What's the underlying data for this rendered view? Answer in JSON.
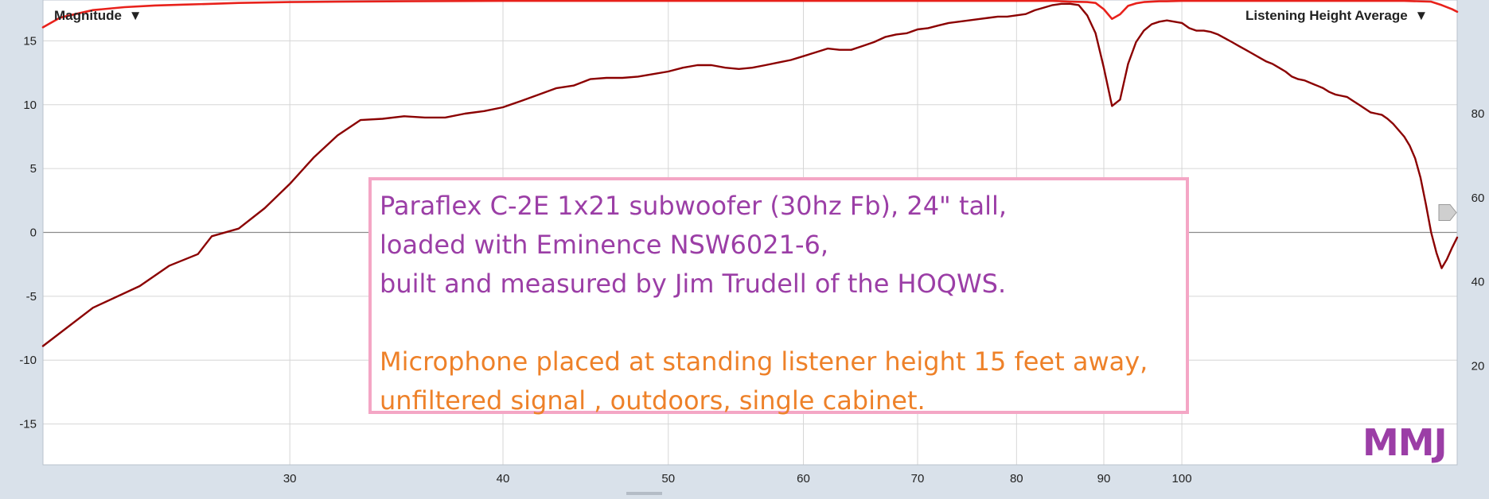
{
  "chart_data": {
    "type": "line",
    "xscale": "log",
    "xlim": [
      21.5,
      145
    ],
    "ylim": [
      -18.2,
      18.2
    ],
    "y2lim": [
      -3.5,
      107
    ],
    "x_ticks": [
      30,
      40,
      50,
      60,
      70,
      80,
      90,
      100
    ],
    "y_ticks": [
      15,
      10,
      5,
      0,
      -5,
      -10,
      -15
    ],
    "y2_ticks": [
      80,
      60,
      40,
      20
    ],
    "grid": true,
    "controls": {
      "left_label": "Magnitude",
      "right_label": "Listening Height Average",
      "dropdown_glyph": "▼"
    },
    "series": [
      {
        "axis": "left",
        "color": "#8b0000",
        "x": [
          21.5,
          23,
          24.5,
          25.5,
          26.5,
          27,
          28,
          29,
          30,
          31,
          32,
          33,
          34,
          35,
          36,
          37,
          38,
          39,
          40,
          41,
          42,
          43,
          44,
          45,
          46,
          47,
          48,
          49,
          50,
          51,
          52,
          53,
          54,
          55,
          56,
          57,
          58,
          59,
          60,
          61,
          62,
          63,
          64,
          65,
          66,
          67,
          68,
          69,
          70,
          71,
          72,
          73,
          74,
          75,
          76,
          77,
          78,
          79,
          80,
          81,
          82,
          83,
          84,
          85,
          86,
          87,
          88,
          89,
          90,
          91,
          92,
          93,
          94,
          95,
          96,
          97,
          98,
          99,
          100,
          101,
          102,
          103,
          104,
          105,
          106,
          107,
          108,
          109,
          110,
          111,
          112,
          113,
          114,
          115,
          116,
          117,
          118,
          119,
          120,
          121,
          122,
          123,
          124,
          125,
          126,
          127,
          128,
          129,
          130,
          131,
          132,
          133,
          134,
          135,
          136,
          137,
          138,
          139,
          140,
          141,
          142,
          143,
          144,
          145
        ],
        "y": [
          -8.9,
          -5.9,
          -4.2,
          -2.6,
          -1.7,
          -0.3,
          0.3,
          1.9,
          3.8,
          5.9,
          7.6,
          8.8,
          8.9,
          9.1,
          9.0,
          9.0,
          9.3,
          9.5,
          9.8,
          10.3,
          10.8,
          11.3,
          11.5,
          12.0,
          12.1,
          12.1,
          12.2,
          12.4,
          12.6,
          12.9,
          13.1,
          13.1,
          12.9,
          12.8,
          12.9,
          13.1,
          13.3,
          13.5,
          13.8,
          14.1,
          14.4,
          14.3,
          14.3,
          14.6,
          14.9,
          15.3,
          15.5,
          15.6,
          15.9,
          16.0,
          16.2,
          16.4,
          16.5,
          16.6,
          16.7,
          16.8,
          16.9,
          16.9,
          17.0,
          17.1,
          17.4,
          17.6,
          17.8,
          17.9,
          17.9,
          17.8,
          17.0,
          15.6,
          12.9,
          9.9,
          10.4,
          13.2,
          14.9,
          15.8,
          16.3,
          16.5,
          16.6,
          16.5,
          16.4,
          16.0,
          15.8,
          15.8,
          15.7,
          15.5,
          15.2,
          14.9,
          14.6,
          14.3,
          14.0,
          13.7,
          13.4,
          13.2,
          12.9,
          12.6,
          12.2,
          12.0,
          11.9,
          11.7,
          11.5,
          11.3,
          11.0,
          10.8,
          10.7,
          10.6,
          10.3,
          10.0,
          9.7,
          9.4,
          9.3,
          9.2,
          8.9,
          8.5,
          8.0,
          7.5,
          6.8,
          5.8,
          4.3,
          2.2,
          0.0,
          -1.6,
          -2.8,
          -2.1,
          -1.2,
          -0.4
        ]
      },
      {
        "axis": "right",
        "color": "#e8211b",
        "x": [
          21.5,
          22,
          23,
          24,
          25,
          26,
          27,
          28,
          30,
          32,
          35,
          40,
          45,
          50,
          55,
          60,
          65,
          70,
          75,
          80,
          84,
          86,
          88,
          89,
          90,
          91,
          92,
          93,
          94,
          95,
          96,
          97,
          98,
          100,
          105,
          110,
          115,
          120,
          125,
          130,
          135,
          140,
          142,
          144,
          145
        ],
        "y": [
          100.5,
          102.8,
          104.6,
          105.3,
          105.7,
          105.9,
          106.1,
          106.3,
          106.5,
          106.6,
          106.7,
          106.8,
          106.8,
          106.8,
          106.8,
          106.8,
          106.8,
          106.8,
          106.8,
          106.8,
          106.8,
          106.6,
          106.5,
          106.3,
          104.8,
          102.5,
          103.6,
          105.6,
          106.2,
          106.5,
          106.6,
          106.7,
          106.7,
          106.8,
          106.8,
          106.8,
          106.8,
          106.8,
          106.8,
          106.8,
          106.8,
          106.6,
          105.8,
          104.8,
          104.2
        ]
      }
    ]
  },
  "annotation": {
    "line1": "Paraflex C-2E 1x21 subwoofer (30hz Fb), 24\" tall,",
    "line2": "loaded with Eminence NSW6021-6,",
    "line3": "built and measured by Jim Trudell of the HOQWS.",
    "line4": "Microphone placed at standing listener height 15 feet away,",
    "line5": "unfiltered signal , outdoors, single cabinet."
  },
  "watermark": "MMJ",
  "colors": {
    "plot_bg": "#ffffff",
    "frame_bg": "#d9e1ea",
    "grid": "#d6d6d6",
    "zero_line": "#8a8a8a",
    "text_purple": "#9b3ea6",
    "text_orange": "#ee8129",
    "box_border": "#f4a6c5"
  }
}
